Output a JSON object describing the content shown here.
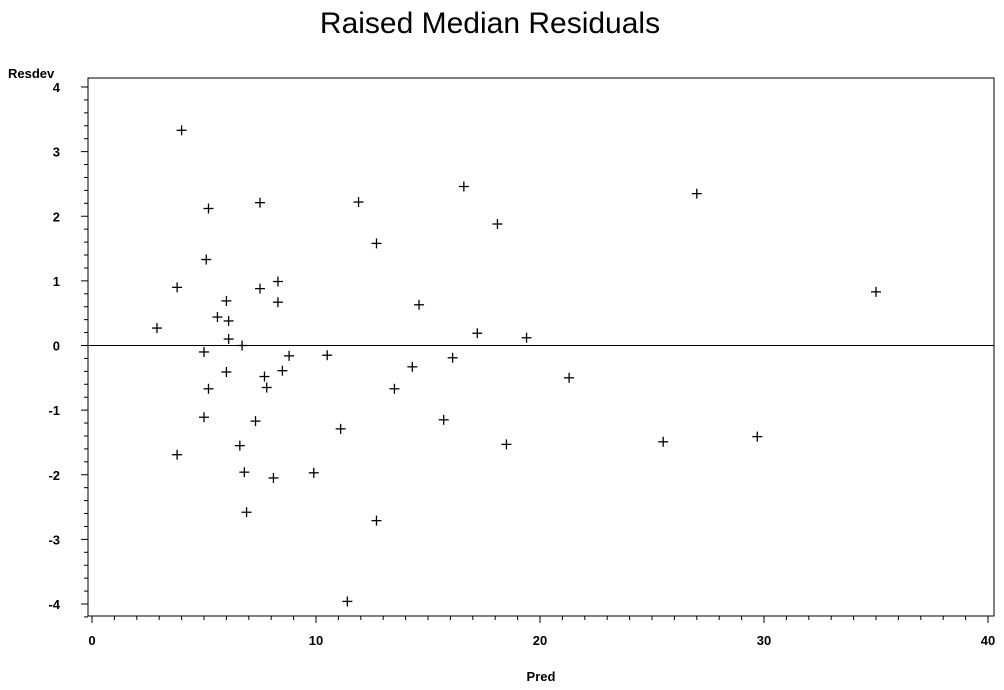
{
  "chart_data": {
    "type": "scatter",
    "title": "Raised Median Residuals",
    "xlabel": "Pred",
    "ylabel": "Resdev",
    "xlim": [
      0,
      40
    ],
    "ylim": [
      -4.2,
      4.1
    ],
    "xticks": [
      0,
      10,
      20,
      30,
      40
    ],
    "xtick_labels": [
      "0",
      "10",
      "20",
      "30",
      "40"
    ],
    "yticks": [
      -4,
      -3,
      -2,
      -1,
      0,
      1,
      2,
      3,
      4
    ],
    "ytick_labels": [
      "-4",
      "-3",
      "-2",
      "-1",
      "0",
      "1",
      "2",
      "3",
      "4"
    ],
    "reference_line_y": 0,
    "marker": "+",
    "grid": false,
    "points": [
      {
        "x": 4.0,
        "y": 3.33
      },
      {
        "x": 16.6,
        "y": 2.46
      },
      {
        "x": 27.0,
        "y": 2.35
      },
      {
        "x": 7.5,
        "y": 2.21
      },
      {
        "x": 11.9,
        "y": 2.22
      },
      {
        "x": 5.2,
        "y": 2.12
      },
      {
        "x": 18.1,
        "y": 1.88
      },
      {
        "x": 12.7,
        "y": 1.58
      },
      {
        "x": 5.1,
        "y": 1.33
      },
      {
        "x": 8.3,
        "y": 0.99
      },
      {
        "x": 3.8,
        "y": 0.9
      },
      {
        "x": 7.5,
        "y": 0.88
      },
      {
        "x": 35.0,
        "y": 0.83
      },
      {
        "x": 6.0,
        "y": 0.69
      },
      {
        "x": 8.3,
        "y": 0.67
      },
      {
        "x": 14.6,
        "y": 0.63
      },
      {
        "x": 5.6,
        "y": 0.44
      },
      {
        "x": 6.1,
        "y": 0.38
      },
      {
        "x": 2.9,
        "y": 0.27
      },
      {
        "x": 17.2,
        "y": 0.19
      },
      {
        "x": 19.4,
        "y": 0.12
      },
      {
        "x": 6.1,
        "y": 0.1
      },
      {
        "x": 6.7,
        "y": 0.0
      },
      {
        "x": 5.0,
        "y": -0.1
      },
      {
        "x": 8.8,
        "y": -0.16
      },
      {
        "x": 10.5,
        "y": -0.15
      },
      {
        "x": 16.1,
        "y": -0.19
      },
      {
        "x": 14.3,
        "y": -0.33
      },
      {
        "x": 6.0,
        "y": -0.41
      },
      {
        "x": 8.5,
        "y": -0.39
      },
      {
        "x": 7.7,
        "y": -0.48
      },
      {
        "x": 21.3,
        "y": -0.5
      },
      {
        "x": 5.2,
        "y": -0.67
      },
      {
        "x": 7.8,
        "y": -0.65
      },
      {
        "x": 13.5,
        "y": -0.67
      },
      {
        "x": 5.0,
        "y": -1.11
      },
      {
        "x": 15.7,
        "y": -1.15
      },
      {
        "x": 7.3,
        "y": -1.17
      },
      {
        "x": 11.1,
        "y": -1.29
      },
      {
        "x": 29.7,
        "y": -1.41
      },
      {
        "x": 25.5,
        "y": -1.49
      },
      {
        "x": 18.5,
        "y": -1.53
      },
      {
        "x": 6.6,
        "y": -1.55
      },
      {
        "x": 3.8,
        "y": -1.69
      },
      {
        "x": 6.8,
        "y": -1.96
      },
      {
        "x": 9.9,
        "y": -1.97
      },
      {
        "x": 8.1,
        "y": -2.05
      },
      {
        "x": 6.9,
        "y": -2.58
      },
      {
        "x": 12.7,
        "y": -2.71
      },
      {
        "x": 11.4,
        "y": -3.96
      }
    ]
  }
}
